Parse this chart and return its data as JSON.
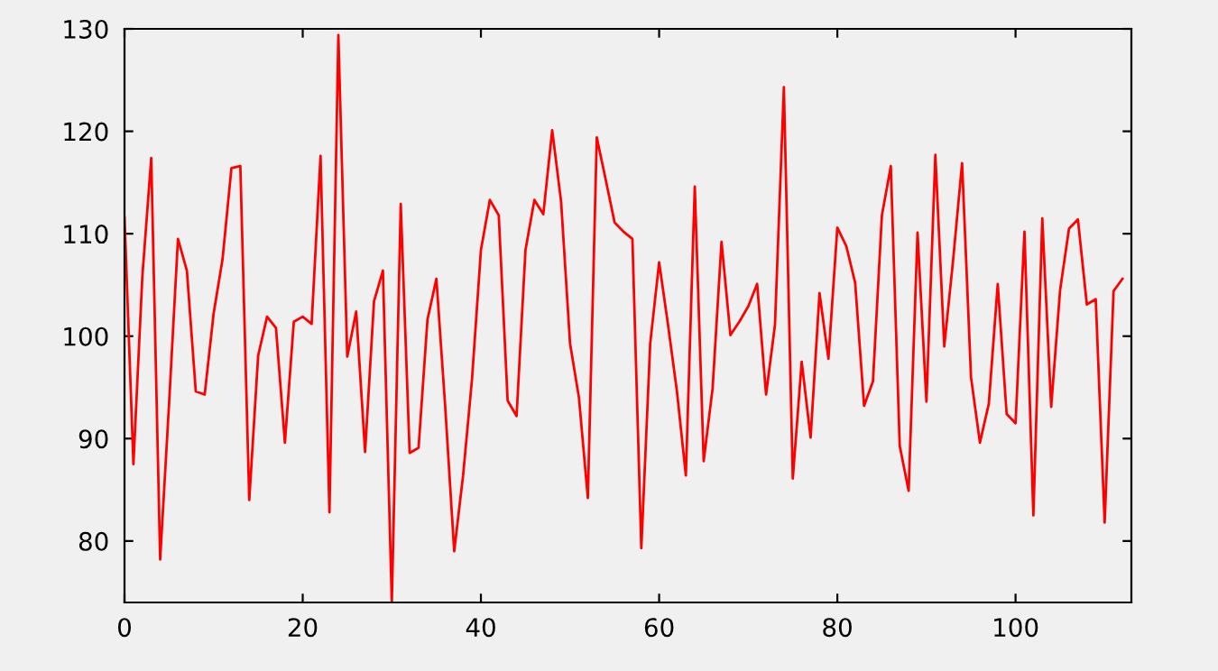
{
  "chart_data": {
    "type": "line",
    "x": [
      0,
      1,
      2,
      3,
      4,
      5,
      6,
      7,
      8,
      9,
      10,
      11,
      12,
      13,
      14,
      15,
      16,
      17,
      18,
      19,
      20,
      21,
      22,
      23,
      24,
      25,
      26,
      27,
      28,
      29,
      30,
      31,
      32,
      33,
      34,
      35,
      36,
      37,
      38,
      39,
      40,
      41,
      42,
      43,
      44,
      45,
      46,
      47,
      48,
      49,
      50,
      51,
      52,
      53,
      54,
      55,
      56,
      57,
      58,
      59,
      60,
      61,
      62,
      63,
      64,
      65,
      66,
      67,
      68,
      69,
      70,
      71,
      72,
      73,
      74,
      75,
      76,
      77,
      78,
      79,
      80,
      81,
      82,
      83,
      84,
      85,
      86,
      87,
      88,
      89,
      90,
      91,
      92,
      93,
      94,
      95,
      96,
      97,
      98,
      99,
      100,
      101,
      102,
      103,
      104,
      105,
      106,
      107,
      108,
      109,
      110,
      111,
      112
    ],
    "series": [
      {
        "color": "#ff0000",
        "values": [
          111.6,
          87.5,
          105.8,
          117.4,
          78.2,
          93.4,
          109.5,
          106.4,
          94.6,
          94.3,
          102.2,
          107.5,
          116.4,
          116.6,
          84,
          98.1,
          101.9,
          100.8,
          89.6,
          101.4,
          101.9,
          101.2,
          117.6,
          82.8,
          129.4,
          98,
          102.4,
          88.7,
          103.4,
          106.4,
          74,
          112.9,
          88.6,
          89.1,
          101.6,
          105.6,
          93,
          79,
          86.4,
          95.8,
          108.4,
          113.3,
          111.8,
          93.7,
          92.2,
          108.4,
          113.3,
          111.9,
          120.1,
          113.1,
          99.3,
          94,
          84.2,
          119.4,
          115.3,
          111.1,
          110.2,
          109.5,
          79.3,
          99.3,
          107.2,
          101.1,
          94.6,
          86.4,
          114.6,
          87.8,
          94.9,
          109.2,
          100.1,
          101.4,
          102.9,
          105.1,
          94.3,
          101.1,
          124.3,
          86.1,
          97.5,
          90.1,
          104.2,
          97.8,
          110.6,
          108.8,
          105.2,
          93.2,
          95.6,
          111.8,
          116.6,
          89.3,
          84.9,
          110.1,
          93.6,
          117.7,
          99,
          107.5,
          116.9,
          96,
          89.6,
          93.4,
          105.1,
          92.4,
          91.5,
          110.2,
          82.5,
          111.5,
          93.1,
          104.5,
          110.5,
          111.4,
          103.1,
          103.6,
          81.8,
          104.4,
          105.6
        ]
      }
    ],
    "xlim": [
      0,
      113
    ],
    "xticks": [
      0,
      20,
      40,
      60,
      80,
      100
    ],
    "ylim": [
      74,
      130
    ],
    "yticks": [
      80,
      90,
      100,
      110,
      120,
      130
    ],
    "grid": false,
    "legend": false,
    "marker": "none",
    "line_style": "solid"
  }
}
